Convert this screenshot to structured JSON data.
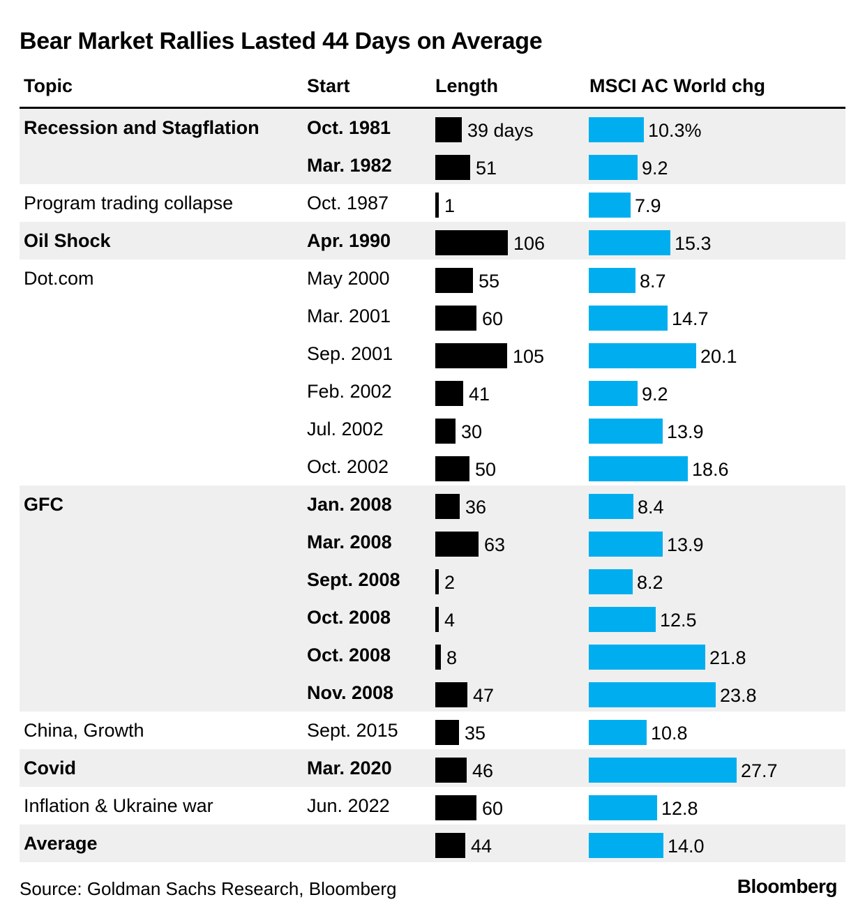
{
  "chart_data": {
    "type": "table",
    "title": "Bear Market Rallies Lasted 44 Days on Average",
    "columns": [
      "Topic",
      "Start",
      "Length",
      "MSCI AC World chg"
    ],
    "rows": [
      {
        "topic": "Recession and Stagflation",
        "start": "Oct. 1981",
        "length": 39,
        "length_label": "39 days",
        "msci": 10.3,
        "msci_label": "10.3%",
        "bold": true,
        "shade": true
      },
      {
        "topic": "",
        "start": "Mar. 1982",
        "length": 51,
        "length_label": "51",
        "msci": 9.2,
        "msci_label": "9.2",
        "bold": true,
        "shade": true
      },
      {
        "topic": "Program trading collapse",
        "start": "Oct. 1987",
        "length": 1,
        "length_label": "1",
        "msci": 7.9,
        "msci_label": "7.9",
        "bold": false,
        "shade": false
      },
      {
        "topic": "Oil Shock",
        "start": "Apr. 1990",
        "length": 106,
        "length_label": "106",
        "msci": 15.3,
        "msci_label": "15.3",
        "bold": true,
        "shade": true
      },
      {
        "topic": "Dot.com",
        "start": "May 2000",
        "length": 55,
        "length_label": "55",
        "msci": 8.7,
        "msci_label": "8.7",
        "bold": false,
        "shade": false
      },
      {
        "topic": "",
        "start": "Mar. 2001",
        "length": 60,
        "length_label": "60",
        "msci": 14.7,
        "msci_label": "14.7",
        "bold": false,
        "shade": false
      },
      {
        "topic": "",
        "start": "Sep. 2001",
        "length": 105,
        "length_label": "105",
        "msci": 20.1,
        "msci_label": "20.1",
        "bold": false,
        "shade": false
      },
      {
        "topic": "",
        "start": "Feb. 2002",
        "length": 41,
        "length_label": "41",
        "msci": 9.2,
        "msci_label": "9.2",
        "bold": false,
        "shade": false
      },
      {
        "topic": "",
        "start": "Jul. 2002",
        "length": 30,
        "length_label": "30",
        "msci": 13.9,
        "msci_label": "13.9",
        "bold": false,
        "shade": false
      },
      {
        "topic": "",
        "start": "Oct. 2002",
        "length": 50,
        "length_label": "50",
        "msci": 18.6,
        "msci_label": "18.6",
        "bold": false,
        "shade": false
      },
      {
        "topic": "GFC",
        "start": "Jan. 2008",
        "length": 36,
        "length_label": "36",
        "msci": 8.4,
        "msci_label": "8.4",
        "bold": true,
        "shade": true
      },
      {
        "topic": "",
        "start": "Mar. 2008",
        "length": 63,
        "length_label": "63",
        "msci": 13.9,
        "msci_label": "13.9",
        "bold": true,
        "shade": true
      },
      {
        "topic": "",
        "start": "Sept. 2008",
        "length": 2,
        "length_label": "2",
        "msci": 8.2,
        "msci_label": "8.2",
        "bold": true,
        "shade": true
      },
      {
        "topic": "",
        "start": "Oct. 2008",
        "length": 4,
        "length_label": "4",
        "msci": 12.5,
        "msci_label": "12.5",
        "bold": true,
        "shade": true
      },
      {
        "topic": "",
        "start": "Oct. 2008",
        "length": 8,
        "length_label": "8",
        "msci": 21.8,
        "msci_label": "21.8",
        "bold": true,
        "shade": true
      },
      {
        "topic": "",
        "start": "Nov. 2008",
        "length": 47,
        "length_label": "47",
        "msci": 23.8,
        "msci_label": "23.8",
        "bold": true,
        "shade": true
      },
      {
        "topic": "China, Growth",
        "start": "Sept. 2015",
        "length": 35,
        "length_label": "35",
        "msci": 10.8,
        "msci_label": "10.8",
        "bold": false,
        "shade": false
      },
      {
        "topic": "Covid",
        "start": "Mar. 2020",
        "length": 46,
        "length_label": "46",
        "msci": 27.7,
        "msci_label": "27.7",
        "bold": true,
        "shade": true
      },
      {
        "topic": "Inflation & Ukraine war",
        "start": "Jun. 2022",
        "length": 60,
        "length_label": "60",
        "msci": 12.8,
        "msci_label": "12.8",
        "bold": false,
        "shade": false
      },
      {
        "topic": "Average",
        "start": "",
        "length": 44,
        "length_label": "44",
        "msci": 14.0,
        "msci_label": "14.0",
        "bold": true,
        "shade": true
      }
    ],
    "length_max": 106,
    "msci_max": 27.7
  },
  "footer": {
    "source": "Source: Goldman Sachs Research, Bloomberg",
    "brand": "Bloomberg"
  },
  "colors": {
    "length_bar": "#000000",
    "msci_bar": "#00aeef",
    "shade": "#efefef"
  }
}
